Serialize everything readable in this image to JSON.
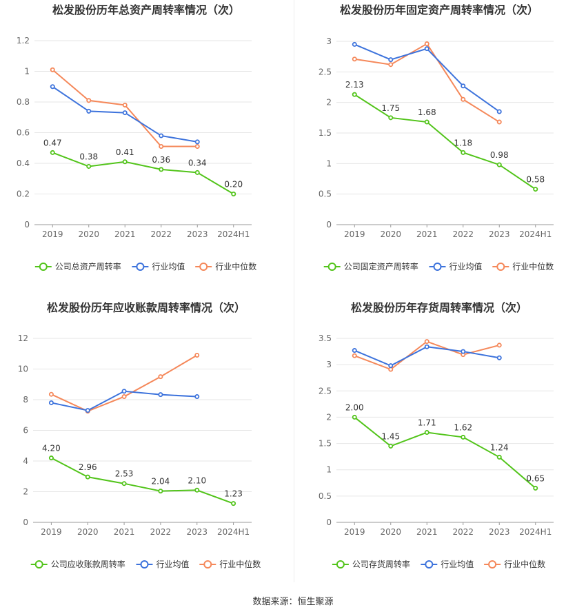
{
  "footer": {
    "source": "数据来源：恒生聚源"
  },
  "colors": {
    "company": "#52c41a",
    "average": "#3d73dc",
    "median": "#f5885a",
    "grid": "#e6e6e6",
    "axis": "#666666"
  },
  "chart_data": [
    {
      "type": "line",
      "title": "松发股份历年总资产周转率情况（次）",
      "categories": [
        "2019",
        "2020",
        "2021",
        "2022",
        "2023",
        "2024H1"
      ],
      "ylim": [
        0,
        1.2
      ],
      "yticks": [
        0,
        0.2,
        0.4,
        0.6,
        0.8,
        1,
        1.2
      ],
      "grid": true,
      "legend_position": "bottom",
      "series": [
        {
          "name": "公司总资产周转率",
          "key": "company",
          "values": [
            0.47,
            0.38,
            0.41,
            0.36,
            0.34,
            0.2
          ],
          "labels": [
            "0.47",
            "0.38",
            "0.41",
            "0.36",
            "0.34",
            "0.20"
          ]
        },
        {
          "name": "行业均值",
          "key": "average",
          "values": [
            0.9,
            0.74,
            0.73,
            0.58,
            0.54,
            null
          ]
        },
        {
          "name": "行业中位数",
          "key": "median",
          "values": [
            1.01,
            0.81,
            0.78,
            0.51,
            0.51,
            null
          ]
        }
      ]
    },
    {
      "type": "line",
      "title": "松发股份历年固定资产周转率情况（次）",
      "categories": [
        "2019",
        "2020",
        "2021",
        "2022",
        "2023",
        "2024H1"
      ],
      "ylim": [
        0,
        3
      ],
      "yticks": [
        0,
        0.5,
        1,
        1.5,
        2,
        2.5,
        3
      ],
      "grid": true,
      "legend_position": "bottom",
      "series": [
        {
          "name": "公司固定资产周转率",
          "key": "company",
          "values": [
            2.13,
            1.75,
            1.68,
            1.18,
            0.98,
            0.58
          ],
          "labels": [
            "2.13",
            "1.75",
            "1.68",
            "1.18",
            "0.98",
            "0.58"
          ]
        },
        {
          "name": "行业均值",
          "key": "average",
          "values": [
            2.95,
            2.7,
            2.88,
            2.27,
            1.85,
            null
          ]
        },
        {
          "name": "行业中位数",
          "key": "median",
          "values": [
            2.71,
            2.62,
            2.96,
            2.05,
            1.68,
            null
          ]
        }
      ]
    },
    {
      "type": "line",
      "title": "松发股份历年应收账款周转率情况（次）",
      "categories": [
        "2019",
        "2020",
        "2021",
        "2022",
        "2023",
        "2024H1"
      ],
      "ylim": [
        0,
        12
      ],
      "yticks": [
        0,
        2,
        4,
        6,
        8,
        10,
        12
      ],
      "grid": true,
      "legend_position": "bottom",
      "series": [
        {
          "name": "公司应收账款周转率",
          "key": "company",
          "values": [
            4.2,
            2.96,
            2.53,
            2.04,
            2.1,
            1.23
          ],
          "labels": [
            "4.20",
            "2.96",
            "2.53",
            "2.04",
            "2.10",
            "1.23"
          ]
        },
        {
          "name": "行业均值",
          "key": "average",
          "values": [
            7.8,
            7.3,
            8.55,
            8.33,
            8.2,
            null
          ]
        },
        {
          "name": "行业中位数",
          "key": "median",
          "values": [
            8.35,
            7.25,
            8.2,
            9.5,
            10.9,
            null
          ]
        }
      ]
    },
    {
      "type": "line",
      "title": "松发股份历年存货周转率情况（次）",
      "categories": [
        "2019",
        "2020",
        "2021",
        "2022",
        "2023",
        "2024H1"
      ],
      "ylim": [
        0,
        3.5
      ],
      "yticks": [
        0,
        0.5,
        1,
        1.5,
        2,
        2.5,
        3,
        3.5
      ],
      "grid": true,
      "legend_position": "bottom",
      "series": [
        {
          "name": "公司存货周转率",
          "key": "company",
          "values": [
            2.0,
            1.45,
            1.71,
            1.62,
            1.24,
            0.65
          ],
          "labels": [
            "2.00",
            "1.45",
            "1.71",
            "1.62",
            "1.24",
            "0.65"
          ]
        },
        {
          "name": "行业均值",
          "key": "average",
          "values": [
            3.27,
            2.98,
            3.34,
            3.25,
            3.13,
            null
          ]
        },
        {
          "name": "行业中位数",
          "key": "median",
          "values": [
            3.17,
            2.91,
            3.44,
            3.19,
            3.37,
            null
          ]
        }
      ]
    }
  ]
}
